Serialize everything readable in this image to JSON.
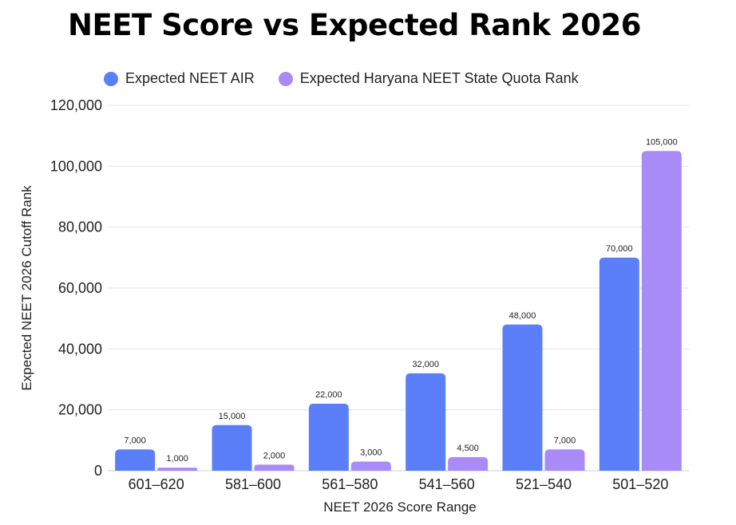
{
  "chart_data": {
    "type": "bar",
    "title": "NEET Score vs Expected Rank 2026",
    "xlabel": "NEET 2026 Score Range",
    "ylabel": "Expected NEET 2026 Cutoff Rank",
    "categories": [
      "601–620",
      "581–600",
      "561–580",
      "541–560",
      "521–540",
      "501–520"
    ],
    "series": [
      {
        "name": "Expected NEET AIR",
        "color": "#5b7ff8",
        "values": [
          7000,
          15000,
          22000,
          32000,
          48000,
          70000
        ],
        "labels": [
          "7,000",
          "15,000",
          "22,000",
          "32,000",
          "48,000",
          "70,000"
        ]
      },
      {
        "name": "Expected Haryana NEET State Quota Rank",
        "color": "#a98bf7",
        "values": [
          1000,
          2000,
          3000,
          4500,
          7000,
          105000
        ],
        "labels": [
          "1,000",
          "2,000",
          "3,000",
          "4,500",
          "7,000",
          "105,000"
        ]
      }
    ],
    "ylim": [
      0,
      120000
    ],
    "yticks": [
      0,
      20000,
      40000,
      60000,
      80000,
      100000,
      120000
    ],
    "ytick_labels": [
      "0",
      "20,000",
      "40,000",
      "60,000",
      "80,000",
      "100,000",
      "120,000"
    ],
    "grid": true,
    "legend_position": "top"
  }
}
